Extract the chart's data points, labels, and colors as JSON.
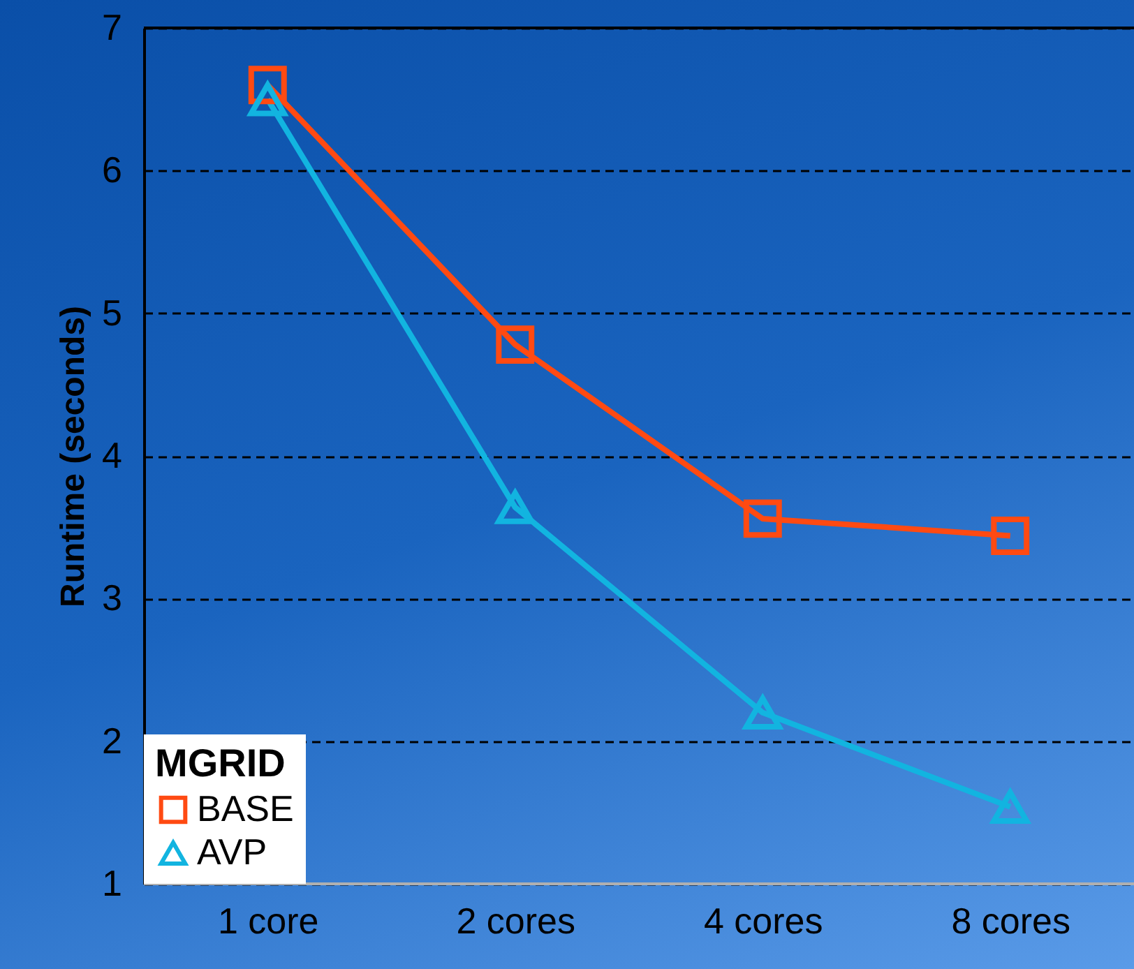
{
  "chart_data": {
    "type": "line",
    "ylabel": "Runtime (seconds)",
    "legend_title": "MGRID",
    "categories": [
      "1 core",
      "2 cores",
      "4 cores",
      "8 cores"
    ],
    "series": [
      {
        "name": "BASE",
        "color": "#ff4a12",
        "marker": "square",
        "values": [
          6.6,
          4.78,
          3.56,
          3.44
        ]
      },
      {
        "name": "AVP",
        "color": "#12b4e0",
        "marker": "triangle",
        "values": [
          6.5,
          3.64,
          2.2,
          1.54
        ]
      }
    ],
    "ylim": [
      1,
      7
    ],
    "yticks": [
      1,
      2,
      3,
      4,
      5,
      6,
      7
    ],
    "grid": "y",
    "line_style": "solid",
    "legend": "bottom left"
  }
}
